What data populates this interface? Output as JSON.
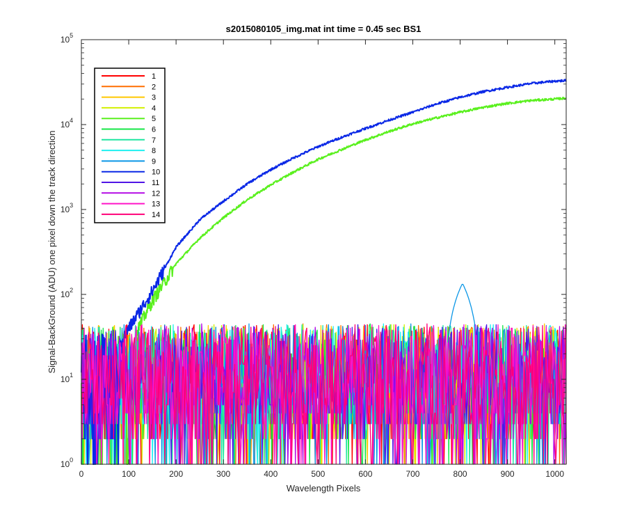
{
  "chart_data": {
    "type": "line",
    "title": "s2015080105_img.mat int time = 0.45 sec   BS1",
    "xlabel": "Wavelength Pixels",
    "ylabel": "Signal-BackGround (ADU) one pixel down the track direction",
    "xlim": [
      0,
      1024
    ],
    "ylim": [
      1,
      100000
    ],
    "yscale": "log",
    "x_ticks": [
      0,
      100,
      200,
      300,
      400,
      500,
      600,
      700,
      800,
      900,
      1000
    ],
    "y_ticks": [
      {
        "value": 1,
        "base": "10",
        "exp": "0"
      },
      {
        "value": 10,
        "base": "10",
        "exp": "1"
      },
      {
        "value": 100,
        "base": "10",
        "exp": "2"
      },
      {
        "value": 1000,
        "base": "10",
        "exp": "3"
      },
      {
        "value": 10000,
        "base": "10",
        "exp": "4"
      },
      {
        "value": 100000,
        "base": "10",
        "exp": "5"
      }
    ],
    "grid": false,
    "legend_position": "top-left",
    "series": [
      {
        "name": "1",
        "color": "#ff0000",
        "kind": "noise"
      },
      {
        "name": "2",
        "color": "#ff6f00",
        "kind": "noise"
      },
      {
        "name": "3",
        "color": "#ffc800",
        "kind": "noise"
      },
      {
        "name": "4",
        "color": "#d2f000",
        "kind": "noise"
      },
      {
        "name": "5",
        "color": "#5af01e",
        "kind": "signal",
        "points": [
          [
            110,
            22
          ],
          [
            120,
            40
          ],
          [
            150,
            85
          ],
          [
            200,
            230
          ],
          [
            250,
            460
          ],
          [
            300,
            800
          ],
          [
            350,
            1300
          ],
          [
            400,
            1950
          ],
          [
            450,
            2800
          ],
          [
            500,
            3900
          ],
          [
            550,
            5100
          ],
          [
            600,
            6600
          ],
          [
            650,
            8300
          ],
          [
            700,
            10200
          ],
          [
            750,
            12000
          ],
          [
            800,
            14000
          ],
          [
            850,
            16000
          ],
          [
            900,
            17800
          ],
          [
            950,
            19200
          ],
          [
            1000,
            20000
          ],
          [
            1024,
            20500
          ]
        ]
      },
      {
        "name": "6",
        "color": "#14e646",
        "kind": "noise"
      },
      {
        "name": "7",
        "color": "#1ee6a0",
        "kind": "noise"
      },
      {
        "name": "8",
        "color": "#1ef0f0",
        "kind": "noise"
      },
      {
        "name": "9",
        "color": "#0a96e6",
        "kind": "noise",
        "bump": {
          "x": 805,
          "peak": 135
        }
      },
      {
        "name": "10",
        "color": "#0a28e6",
        "kind": "signal",
        "points": [
          [
            80,
            25
          ],
          [
            100,
            40
          ],
          [
            150,
            110
          ],
          [
            200,
            360
          ],
          [
            250,
            760
          ],
          [
            300,
            1250
          ],
          [
            350,
            2000
          ],
          [
            400,
            2950
          ],
          [
            450,
            4100
          ],
          [
            500,
            5500
          ],
          [
            550,
            7100
          ],
          [
            600,
            9000
          ],
          [
            650,
            11300
          ],
          [
            700,
            14000
          ],
          [
            750,
            17500
          ],
          [
            800,
            21000
          ],
          [
            850,
            24500
          ],
          [
            900,
            27500
          ],
          [
            950,
            30500
          ],
          [
            1000,
            32500
          ],
          [
            1024,
            33000
          ]
        ]
      },
      {
        "name": "11",
        "color": "#5014e6",
        "kind": "noise"
      },
      {
        "name": "12",
        "color": "#b40ae6",
        "kind": "noise"
      },
      {
        "name": "13",
        "color": "#ff14c8",
        "kind": "noise"
      },
      {
        "name": "14",
        "color": "#ff0078",
        "kind": "noise"
      }
    ]
  }
}
